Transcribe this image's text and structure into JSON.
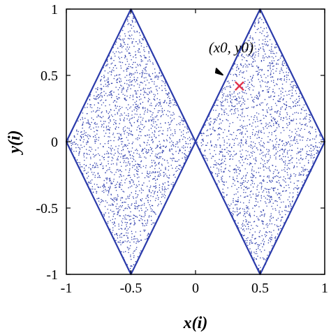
{
  "chart_data": {
    "type": "scatter",
    "title": "",
    "xlabel": "x(i)",
    "ylabel": "y(i)",
    "xlim": [
      -1,
      1
    ],
    "ylim": [
      -1,
      1
    ],
    "xticks": [
      -1,
      -0.5,
      0,
      0.5,
      1
    ],
    "xtick_labels": [
      "-1",
      "-0.5",
      "0",
      "0.5",
      "1"
    ],
    "yticks": [
      1,
      0.5,
      0,
      -0.5,
      -1
    ],
    "ytick_labels": [
      "1",
      "0.5",
      "0",
      "-0.5",
      "-1"
    ],
    "grid": false,
    "series": [
      {
        "marker": "dot",
        "color": "#2b3bab",
        "point_count": 9000,
        "region": "two diamond-shaped lobes |y| <= 1 - 2*|(|x| - 0.5)|, centered at x = -0.5 and x = 0.5, touching at the origin"
      }
    ],
    "annotations": [
      {
        "text": "(x0, y0)",
        "point": [
          0.34,
          0.42
        ],
        "marker": "x",
        "marker_color": "#e0304a",
        "arrow_color": "#000000"
      }
    ]
  }
}
